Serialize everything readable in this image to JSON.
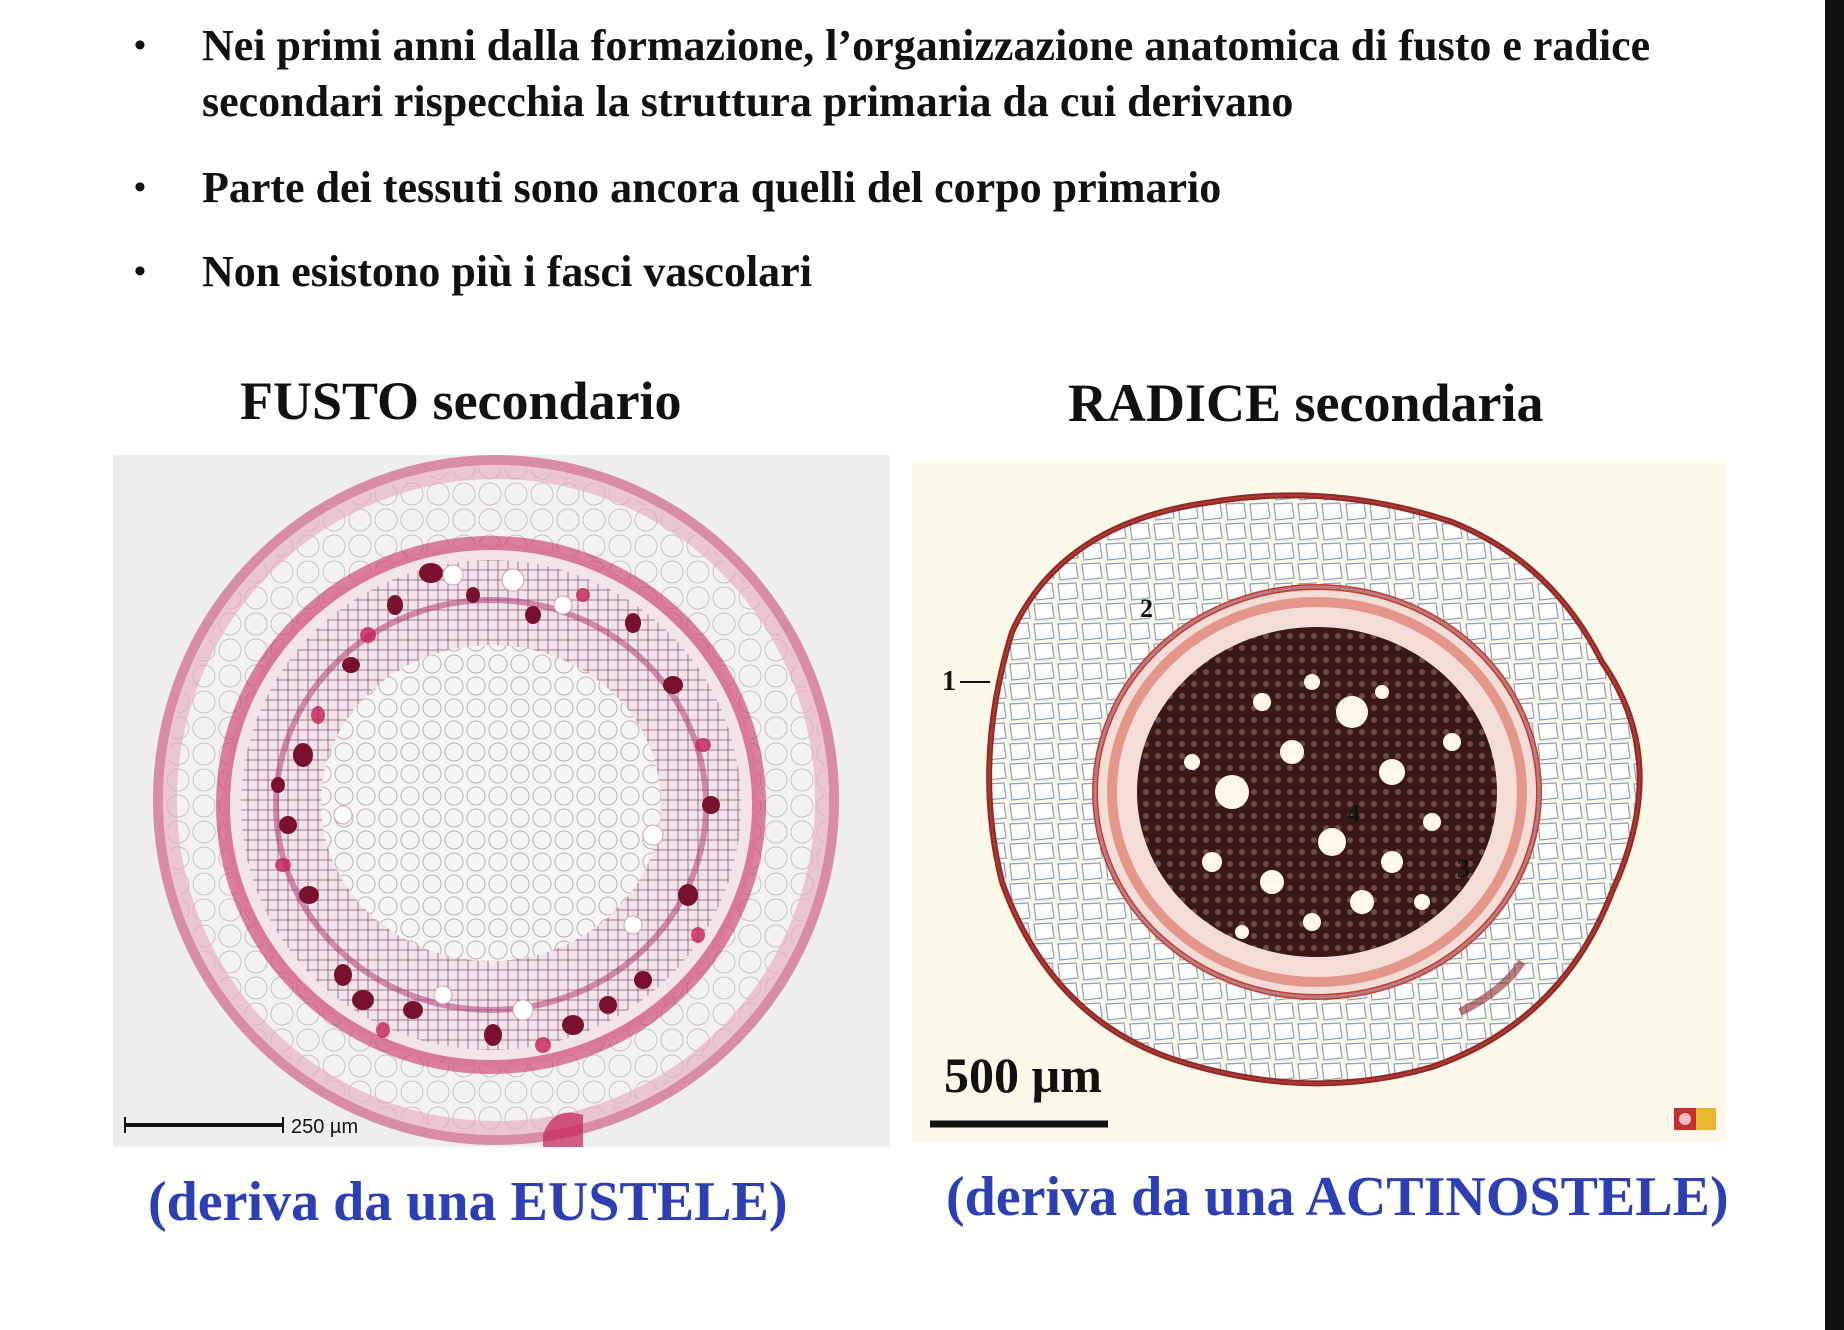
{
  "bullets": [
    {
      "text": "Nei primi anni dalla formazione, l’organizzazione anatomica di fusto e radice secondari rispecchia la struttura primaria da cui derivano"
    },
    {
      "text": "Parte dei tessuti sono ancora quelli del corpo primario"
    },
    {
      "text": "Non esistono più i fasci vascolari"
    }
  ],
  "bullet_symbol": "•",
  "left_panel": {
    "heading": "FUSTO secondario",
    "scale_label": "250 µm",
    "caption": "(deriva da una EUSTELE)"
  },
  "right_panel": {
    "heading": "RADICE secondaria",
    "scale_label": "500 µm",
    "markers": [
      "1",
      "2",
      "3",
      "4"
    ],
    "caption": "(deriva da una ACTINOSTELE)"
  },
  "colors": {
    "text": "#111111",
    "caption_blue": "#2c3fb4",
    "stain_magenta": "#c4205a",
    "stain_dark": "#3a1818"
  }
}
